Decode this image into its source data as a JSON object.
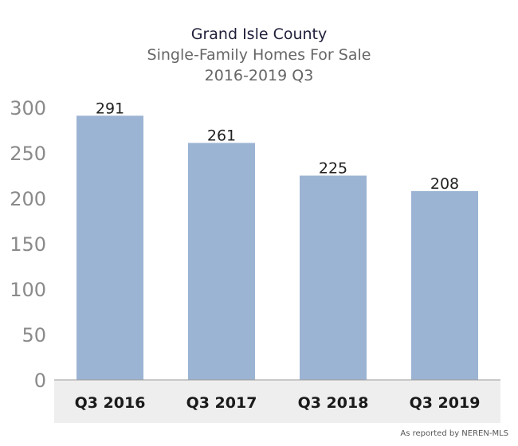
{
  "chart_data": {
    "type": "bar",
    "title": "Grand Isle County",
    "subtitle": "Single-Family Homes For Sale",
    "subtitle2": "2016-2019 Q3",
    "categories": [
      "Q3 2016",
      "Q3 2017",
      "Q3 2018",
      "Q3 2019"
    ],
    "values": [
      291,
      261,
      225,
      208
    ],
    "data_labels": [
      "291",
      "261",
      "225",
      "208"
    ],
    "ylim": [
      0,
      300
    ],
    "yticks": [
      0,
      50,
      100,
      150,
      200,
      250,
      300
    ],
    "ytick_labels": [
      "0",
      "50",
      "100",
      "150",
      "200",
      "250",
      "300"
    ],
    "xlabel": "",
    "ylabel": "",
    "grid": false,
    "legend": "none",
    "bar_color": "#9cb4d3",
    "category_band_color": "#eeeeee"
  },
  "source_note": "As reported by NEREN-MLS"
}
